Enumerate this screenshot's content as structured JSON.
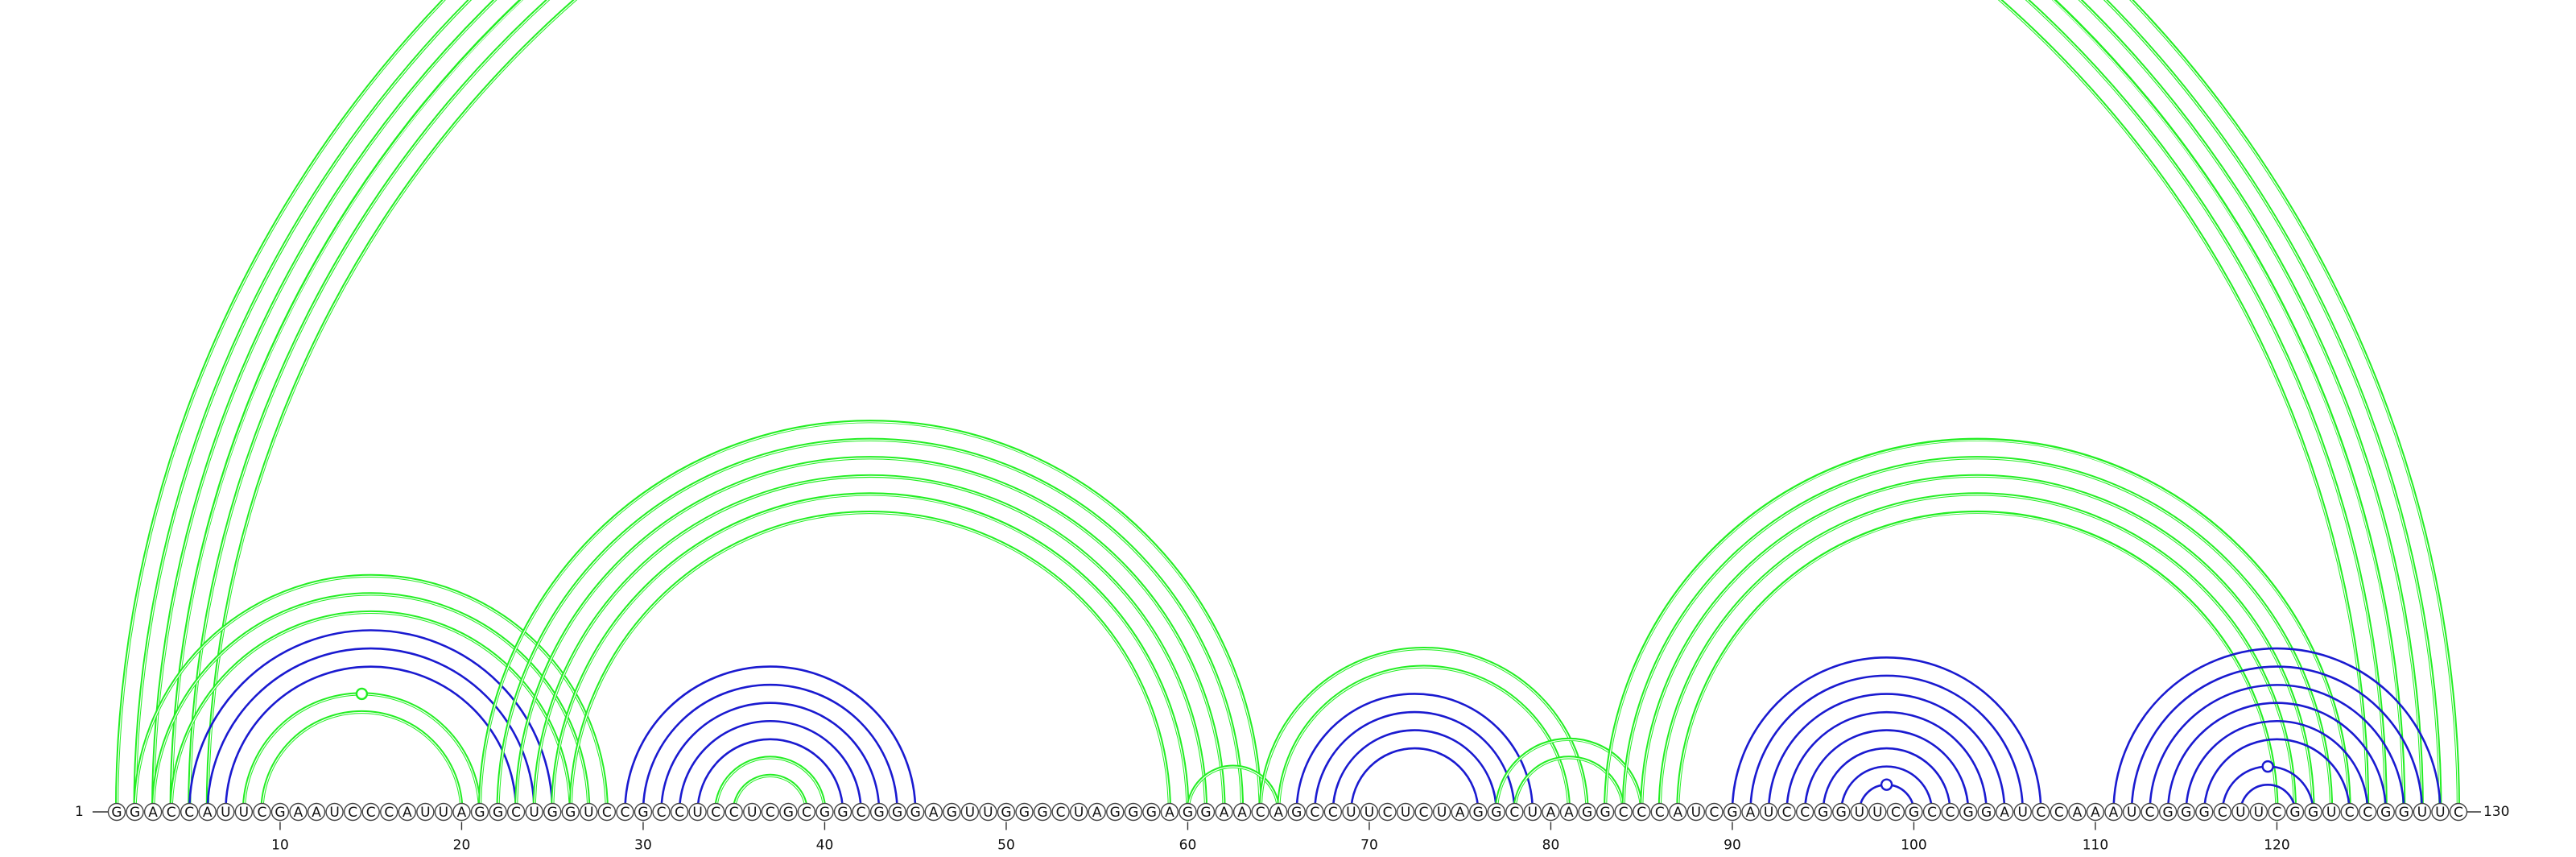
{
  "sequence": "GGACCAUUCGAAUCCCAUUAGGCUGGUCCGCCUCCUCGCGGCGGGAGUUGGGCUAGGGAGGAACAGCCUUCUCUAGGCUAAGGCCCAUCGAUCCGGUUCGCCGGAUCCAAAUCGGGCUUCGGUCCGGUUC",
  "labels": {
    "start": "1",
    "end": "130",
    "ticks": [
      "10",
      "20",
      "30",
      "40",
      "50",
      "60",
      "70",
      "80",
      "90",
      "100",
      "110",
      "120"
    ]
  },
  "colors": {
    "green": "#22ee22",
    "blue": "#1a1ad0"
  },
  "arc_groups": [
    {
      "color": "green",
      "pairs": [
        [
          1,
          130
        ],
        [
          2,
          129
        ],
        [
          3,
          128
        ],
        [
          4,
          127
        ],
        [
          5,
          126
        ],
        [
          6,
          125
        ]
      ],
      "mark_apex_of": [
        1,
        130
      ]
    },
    {
      "color": "green",
      "pairs": [
        [
          2,
          28
        ],
        [
          3,
          27
        ],
        [
          4,
          26
        ]
      ]
    },
    {
      "color": "blue",
      "pairs": [
        [
          5,
          25
        ],
        [
          6,
          24
        ],
        [
          7,
          23
        ]
      ]
    },
    {
      "color": "green",
      "pairs": [
        [
          8,
          21
        ],
        [
          9,
          20
        ]
      ],
      "mark_apex_of": [
        8,
        21
      ]
    },
    {
      "color": "green",
      "pairs": [
        [
          21,
          64
        ],
        [
          22,
          63
        ],
        [
          23,
          62
        ],
        [
          24,
          61
        ],
        [
          25,
          60
        ],
        [
          26,
          59
        ]
      ]
    },
    {
      "color": "blue",
      "pairs": [
        [
          29,
          45
        ],
        [
          30,
          44
        ],
        [
          31,
          43
        ],
        [
          32,
          42
        ],
        [
          33,
          41
        ]
      ]
    },
    {
      "color": "green",
      "pairs": [
        [
          34,
          40
        ],
        [
          35,
          39
        ]
      ]
    },
    {
      "color": "green",
      "pairs": [
        [
          60,
          65
        ]
      ]
    },
    {
      "color": "green",
      "pairs": [
        [
          64,
          82
        ],
        [
          65,
          81
        ]
      ]
    },
    {
      "color": "blue",
      "pairs": [
        [
          66,
          79
        ],
        [
          67,
          78
        ],
        [
          68,
          77
        ],
        [
          69,
          76
        ]
      ]
    },
    {
      "color": "green",
      "pairs": [
        [
          77,
          85
        ],
        [
          78,
          84
        ]
      ]
    },
    {
      "color": "green",
      "pairs": [
        [
          83,
          124
        ],
        [
          84,
          123
        ],
        [
          85,
          122
        ],
        [
          86,
          121
        ],
        [
          87,
          120
        ]
      ]
    },
    {
      "color": "blue",
      "pairs": [
        [
          90,
          107
        ],
        [
          91,
          106
        ],
        [
          92,
          105
        ],
        [
          93,
          104
        ],
        [
          94,
          103
        ],
        [
          95,
          102
        ],
        [
          96,
          101
        ],
        [
          97,
          100
        ]
      ],
      "mark_apex_of": [
        97,
        100
      ]
    },
    {
      "color": "blue",
      "pairs": [
        [
          111,
          129
        ],
        [
          112,
          128
        ],
        [
          113,
          127
        ],
        [
          114,
          126
        ],
        [
          115,
          125
        ],
        [
          116,
          124
        ]
      ]
    },
    {
      "color": "blue",
      "pairs": [
        [
          117,
          122
        ],
        [
          118,
          121
        ]
      ],
      "mark_apex_of": [
        117,
        122
      ]
    }
  ]
}
